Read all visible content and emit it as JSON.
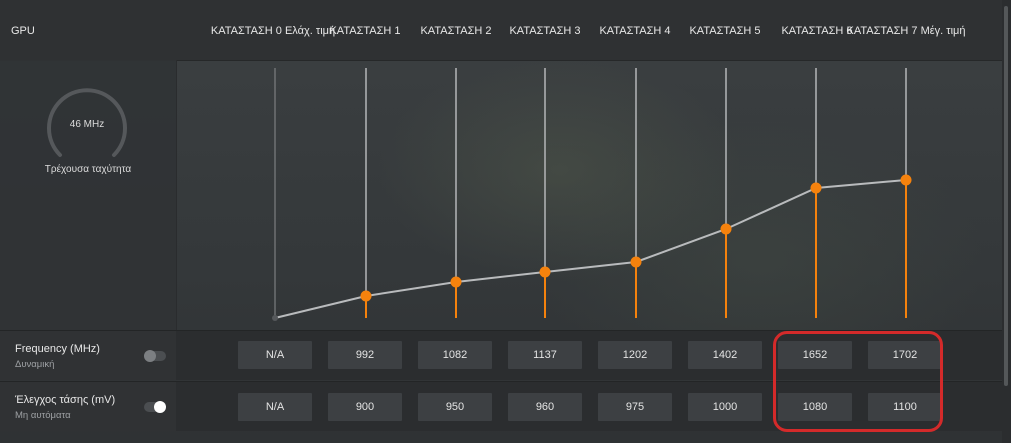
{
  "header": {
    "gpu_label": "GPU",
    "states": [
      "ΚΑΤΑΣΤΑΣΗ 0 Ελάχ. τιμή",
      "ΚΑΤΑΣΤΑΣΗ 1",
      "ΚΑΤΑΣΤΑΣΗ 2",
      "ΚΑΤΑΣΤΑΣΗ 3",
      "ΚΑΤΑΣΤΑΣΗ 4",
      "ΚΑΤΑΣΤΑΣΗ 5",
      "ΚΑΤΑΣΤΑΣΗ 6",
      "ΚΑΤΑΣΤΑΣΗ 7 Μέγ. τιμή"
    ]
  },
  "gauge": {
    "value": "46 MHz",
    "label": "Τρέχουσα ταχύτητα"
  },
  "frequency_row": {
    "title": "Frequency (MHz)",
    "subtitle": "Δυναμική",
    "toggle_on": false,
    "values": [
      "N/A",
      "992",
      "1082",
      "1137",
      "1202",
      "1402",
      "1652",
      "1702"
    ]
  },
  "voltage_row": {
    "title": "Έλεγχος τάσης (mV)",
    "subtitle": "Μη αυτόματα",
    "toggle_on": true,
    "values": [
      "N/A",
      "900",
      "950",
      "960",
      "975",
      "1000",
      "1080",
      "1100"
    ]
  },
  "colors": {
    "accent": "#f5820d",
    "highlight": "#d42a2a"
  }
}
